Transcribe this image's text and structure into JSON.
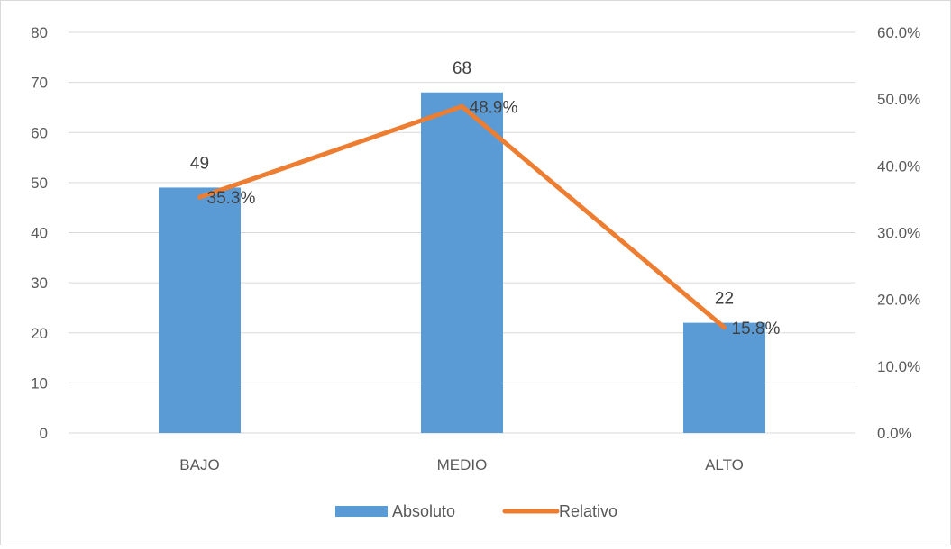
{
  "chart_data": {
    "type": "bar",
    "categories": [
      "BAJO",
      "MEDIO",
      "ALTO"
    ],
    "series": [
      {
        "name": "Absoluto",
        "type": "bar",
        "axis": "left",
        "values": [
          49,
          68,
          22
        ],
        "color": "#5b9bd5",
        "labels": [
          "49",
          "68",
          "22"
        ]
      },
      {
        "name": "Relativo",
        "type": "line",
        "axis": "right",
        "values": [
          35.3,
          48.9,
          15.8
        ],
        "color": "#ed7d31",
        "labels": [
          "35.3%",
          "48.9%",
          "15.8%"
        ]
      }
    ],
    "ylim": [
      0,
      80
    ],
    "y_ticks": [
      "0",
      "10",
      "20",
      "30",
      "40",
      "50",
      "60",
      "70",
      "80"
    ],
    "y2lim": [
      0,
      60
    ],
    "y2_ticks": [
      "0.0%",
      "10.0%",
      "20.0%",
      "30.0%",
      "40.0%",
      "50.0%",
      "60.0%"
    ],
    "grid": true,
    "legend_position": "bottom",
    "gridline_color": "#d9d9d9"
  }
}
